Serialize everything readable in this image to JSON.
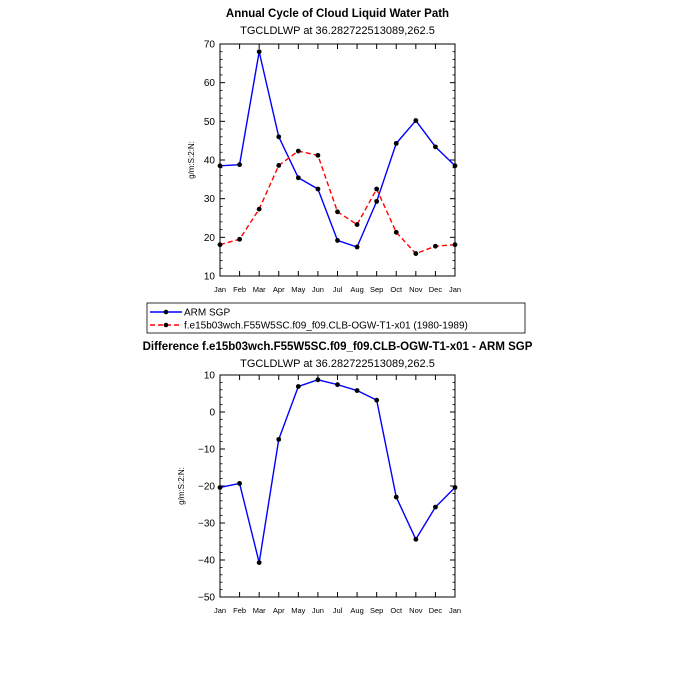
{
  "chart_data": [
    {
      "type": "line",
      "title": "Annual Cycle of Cloud Liquid Water Path",
      "subtitle": "TGCLDLWP  at  36.282722513089,262.5",
      "ylabel": "g/m:S:2:N:",
      "xlabel": "",
      "categories": [
        "Jan",
        "Feb",
        "Mar",
        "Apr",
        "May",
        "Jun",
        "Jul",
        "Aug",
        "Sep",
        "Oct",
        "Nov",
        "Dec",
        "Jan"
      ],
      "ylim": [
        10,
        70
      ],
      "yticks": [
        "10",
        "20",
        "30",
        "40",
        "50",
        "60",
        "70"
      ],
      "series": [
        {
          "name": "ARM SGP",
          "color": "#0000ff",
          "dashed": false,
          "values": [
            38.5,
            38.8,
            68.0,
            46.0,
            35.4,
            32.5,
            19.2,
            17.5,
            29.3,
            44.3,
            50.2,
            43.4,
            38.5
          ]
        },
        {
          "name": "f.e15b03wch.F55W5SC.f09_f09.CLB-OGW-T1-x01 (1980-1989)",
          "color": "#ff0000",
          "dashed": true,
          "values": [
            18.1,
            19.5,
            27.3,
            38.6,
            42.3,
            41.2,
            26.6,
            23.3,
            32.5,
            21.3,
            15.8,
            17.7,
            18.1
          ]
        }
      ]
    },
    {
      "type": "line",
      "title": "Difference f.e15b03wch.F55W5SC.f09_f09.CLB-OGW-T1-x01 - ARM SGP",
      "subtitle": "TGCLDLWP  at  36.282722513089,262.5",
      "ylabel": "g/m:S:2:N:",
      "xlabel": "",
      "categories": [
        "Jan",
        "Feb",
        "Mar",
        "Apr",
        "May",
        "Jun",
        "Jul",
        "Aug",
        "Sep",
        "Oct",
        "Nov",
        "Dec",
        "Jan"
      ],
      "ylim": [
        -50,
        10
      ],
      "yticks": [
        "−50",
        "−40",
        "−30",
        "−20",
        "−10",
        "0",
        "10"
      ],
      "series": [
        {
          "name": "Difference",
          "color": "#0000ff",
          "dashed": false,
          "values": [
            -20.4,
            -19.3,
            -40.7,
            -7.4,
            6.9,
            8.7,
            7.4,
            5.8,
            3.2,
            -23.0,
            -34.4,
            -25.7,
            -20.4
          ]
        }
      ]
    }
  ]
}
